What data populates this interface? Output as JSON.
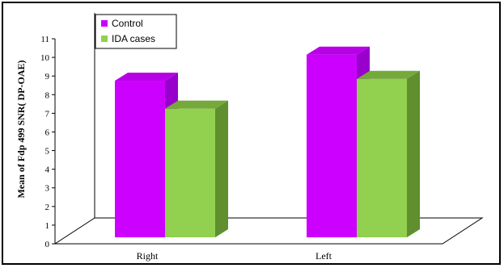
{
  "chart_data": {
    "type": "bar",
    "three_d": true,
    "categories": [
      "Right",
      "Left"
    ],
    "series": [
      {
        "name": "Control",
        "values": [
          8.4,
          9.8
        ],
        "color": "#cc00ff",
        "side_color": "#9900cc",
        "top_color": "#b800e6"
      },
      {
        "name": "IDA cases",
        "values": [
          6.9,
          8.5
        ],
        "color": "#92d050",
        "side_color": "#5f8f2e",
        "top_color": "#76a83c"
      }
    ],
    "ylabel": "Mean of Fdp 499 SNR( DP-OAE)",
    "ylim": [
      0,
      11
    ],
    "yticks": [
      0,
      1,
      2,
      3,
      4,
      5,
      6,
      7,
      8,
      9,
      10,
      11
    ],
    "legend_position": "top-left",
    "grid": false
  }
}
